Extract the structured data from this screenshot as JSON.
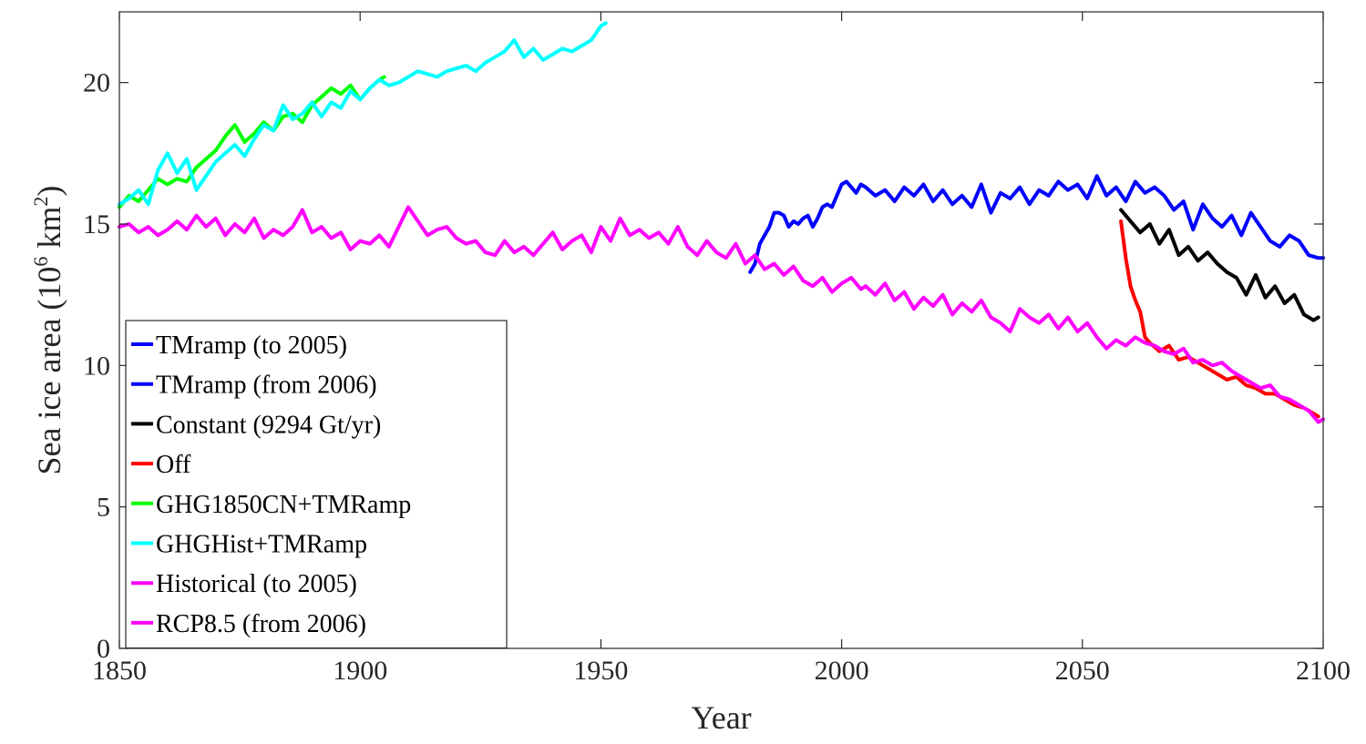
{
  "chart_data": {
    "type": "line",
    "title": "",
    "xlabel": "Year",
    "ylabel": "Sea ice area (10^6 km^2)",
    "ylabel_parts": {
      "pre": "Sea ice area (10",
      "sup1": "6",
      "mid": " km",
      "sup2": "2",
      "post": ")"
    },
    "xlim": [
      1850,
      2100
    ],
    "ylim": [
      0,
      22.5
    ],
    "xticks": [
      1850,
      1900,
      1950,
      2000,
      2050,
      2100
    ],
    "yticks": [
      0,
      5,
      10,
      15,
      20
    ],
    "grid": false,
    "legend_position": "bottom-left",
    "series": [
      {
        "name": "TMramp (to 2005)",
        "color": "#0000ff",
        "x": [
          1981,
          1982,
          1983,
          1984,
          1985,
          1986,
          1987,
          1988,
          1989,
          1990,
          1991,
          1992,
          1993,
          1994,
          1995,
          1996,
          1997,
          1998,
          1999,
          2000,
          2001,
          2002,
          2003,
          2004,
          2005
        ],
        "y": [
          13.3,
          13.6,
          14.3,
          14.6,
          14.9,
          15.4,
          15.4,
          15.3,
          14.9,
          15.1,
          15.0,
          15.2,
          15.3,
          14.9,
          15.2,
          15.6,
          15.7,
          15.6,
          16.0,
          16.4,
          16.5,
          16.3,
          16.1,
          16.4,
          16.3
        ]
      },
      {
        "name": "TMramp (from 2006)",
        "color": "#0000ff",
        "x": [
          2005,
          2007,
          2009,
          2011,
          2013,
          2015,
          2017,
          2019,
          2021,
          2023,
          2025,
          2027,
          2029,
          2031,
          2033,
          2035,
          2037,
          2039,
          2041,
          2043,
          2045,
          2047,
          2049,
          2051,
          2053,
          2055,
          2057,
          2059,
          2061,
          2063,
          2065,
          2067,
          2069,
          2071,
          2073,
          2075,
          2077,
          2079,
          2081,
          2083,
          2085,
          2087,
          2089,
          2091,
          2093,
          2095,
          2097,
          2099,
          2100
        ],
        "y": [
          16.3,
          16.0,
          16.2,
          15.8,
          16.3,
          16.0,
          16.4,
          15.8,
          16.2,
          15.7,
          16.0,
          15.6,
          16.4,
          15.4,
          16.1,
          15.9,
          16.3,
          15.7,
          16.2,
          16.0,
          16.5,
          16.2,
          16.4,
          15.9,
          16.7,
          16.0,
          16.3,
          15.8,
          16.5,
          16.1,
          16.3,
          16.0,
          15.5,
          15.8,
          14.8,
          15.7,
          15.2,
          14.9,
          15.3,
          14.6,
          15.4,
          14.9,
          14.4,
          14.2,
          14.6,
          14.4,
          13.9,
          13.8,
          13.8
        ]
      },
      {
        "name": "Constant (9294 Gt/yr)",
        "color": "#000000",
        "x": [
          2058,
          2060,
          2062,
          2064,
          2066,
          2068,
          2070,
          2072,
          2074,
          2076,
          2078,
          2080,
          2082,
          2084,
          2086,
          2088,
          2090,
          2092,
          2094,
          2096,
          2098,
          2099
        ],
        "y": [
          15.5,
          15.1,
          14.7,
          15.0,
          14.3,
          14.8,
          13.9,
          14.2,
          13.7,
          14.0,
          13.6,
          13.3,
          13.1,
          12.5,
          13.2,
          12.4,
          12.8,
          12.2,
          12.5,
          11.8,
          11.6,
          11.7
        ]
      },
      {
        "name": "Off",
        "color": "#ff0000",
        "x": [
          2058,
          2059,
          2060,
          2061,
          2062,
          2063,
          2064,
          2066,
          2068,
          2070,
          2072,
          2074,
          2076,
          2078,
          2080,
          2082,
          2084,
          2086,
          2088,
          2090,
          2092,
          2094,
          2096,
          2098,
          2099
        ],
        "y": [
          15.1,
          13.8,
          12.8,
          12.3,
          11.9,
          11.0,
          10.8,
          10.5,
          10.7,
          10.2,
          10.3,
          10.1,
          9.9,
          9.7,
          9.5,
          9.6,
          9.3,
          9.2,
          9.0,
          9.0,
          8.8,
          8.6,
          8.5,
          8.3,
          8.2
        ]
      },
      {
        "name": "GHG1850CN+TMRamp",
        "color": "#00ff00",
        "x": [
          1850,
          1852,
          1854,
          1856,
          1858,
          1860,
          1862,
          1864,
          1866,
          1868,
          1870,
          1872,
          1874,
          1876,
          1878,
          1880,
          1882,
          1884,
          1886,
          1888,
          1890,
          1892,
          1894,
          1896,
          1898,
          1900,
          1902,
          1904,
          1905
        ],
        "y": [
          15.6,
          16.0,
          15.8,
          16.2,
          16.6,
          16.4,
          16.6,
          16.5,
          17.0,
          17.3,
          17.6,
          18.1,
          18.5,
          17.9,
          18.2,
          18.6,
          18.3,
          18.8,
          18.9,
          18.6,
          19.2,
          19.5,
          19.8,
          19.6,
          19.9,
          19.4,
          19.8,
          20.1,
          20.2
        ]
      },
      {
        "name": "GHGHist+TMRamp",
        "color": "#00ffff",
        "x": [
          1850,
          1852,
          1854,
          1856,
          1858,
          1860,
          1862,
          1864,
          1866,
          1868,
          1870,
          1872,
          1874,
          1876,
          1878,
          1880,
          1882,
          1884,
          1886,
          1888,
          1890,
          1892,
          1894,
          1896,
          1898,
          1900,
          1902,
          1904,
          1906,
          1908,
          1910,
          1912,
          1914,
          1916,
          1918,
          1920,
          1922,
          1924,
          1926,
          1928,
          1930,
          1932,
          1934,
          1936,
          1938,
          1940,
          1942,
          1944,
          1946,
          1948,
          1950,
          1951
        ],
        "y": [
          15.7,
          15.9,
          16.2,
          15.7,
          16.9,
          17.5,
          16.8,
          17.3,
          16.2,
          16.7,
          17.2,
          17.5,
          17.8,
          17.4,
          18.0,
          18.5,
          18.3,
          19.2,
          18.7,
          18.9,
          19.3,
          18.8,
          19.3,
          19.1,
          19.7,
          19.4,
          19.8,
          20.1,
          19.9,
          20.0,
          20.2,
          20.4,
          20.3,
          20.2,
          20.4,
          20.5,
          20.6,
          20.4,
          20.7,
          20.9,
          21.1,
          21.5,
          20.9,
          21.2,
          20.8,
          21.0,
          21.2,
          21.1,
          21.3,
          21.5,
          22.0,
          22.1
        ]
      },
      {
        "name": "Historical (to 2005)",
        "color": "#ff00ff",
        "x": [
          1850,
          1852,
          1854,
          1856,
          1858,
          1860,
          1862,
          1864,
          1866,
          1868,
          1870,
          1872,
          1874,
          1876,
          1878,
          1880,
          1882,
          1884,
          1886,
          1888,
          1890,
          1892,
          1894,
          1896,
          1898,
          1900,
          1902,
          1904,
          1906,
          1908,
          1910,
          1912,
          1914,
          1916,
          1918,
          1920,
          1922,
          1924,
          1926,
          1928,
          1930,
          1932,
          1934,
          1936,
          1938,
          1940,
          1942,
          1944,
          1946,
          1948,
          1950,
          1952,
          1954,
          1956,
          1958,
          1960,
          1962,
          1964,
          1966,
          1968,
          1970,
          1972,
          1974,
          1976,
          1978,
          1980,
          1982,
          1984,
          1986,
          1988,
          1990,
          1992,
          1994,
          1996,
          1998,
          2000,
          2002,
          2004,
          2005
        ],
        "y": [
          14.9,
          15.0,
          14.7,
          14.9,
          14.6,
          14.8,
          15.1,
          14.8,
          15.3,
          14.9,
          15.2,
          14.6,
          15.0,
          14.7,
          15.2,
          14.5,
          14.8,
          14.6,
          14.9,
          15.5,
          14.7,
          14.9,
          14.5,
          14.7,
          14.1,
          14.4,
          14.3,
          14.6,
          14.2,
          14.9,
          15.6,
          15.1,
          14.6,
          14.8,
          14.9,
          14.5,
          14.3,
          14.4,
          14.0,
          13.9,
          14.4,
          14.0,
          14.2,
          13.9,
          14.3,
          14.7,
          14.1,
          14.4,
          14.6,
          14.0,
          14.9,
          14.4,
          15.2,
          14.6,
          14.8,
          14.5,
          14.7,
          14.3,
          14.9,
          14.2,
          13.9,
          14.4,
          14.0,
          13.8,
          14.3,
          13.6,
          13.9,
          13.4,
          13.6,
          13.2,
          13.5,
          13.0,
          12.8,
          13.1,
          12.6,
          12.9,
          13.1,
          12.7,
          12.8
        ]
      },
      {
        "name": "RCP8.5 (from 2006)",
        "color": "#ff00ff",
        "x": [
          2005,
          2007,
          2009,
          2011,
          2013,
          2015,
          2017,
          2019,
          2021,
          2023,
          2025,
          2027,
          2029,
          2031,
          2033,
          2035,
          2037,
          2039,
          2041,
          2043,
          2045,
          2047,
          2049,
          2051,
          2053,
          2055,
          2057,
          2059,
          2061,
          2063,
          2065,
          2067,
          2069,
          2071,
          2073,
          2075,
          2077,
          2079,
          2081,
          2083,
          2085,
          2087,
          2089,
          2091,
          2093,
          2095,
          2097,
          2099,
          2100
        ],
        "y": [
          12.8,
          12.5,
          12.9,
          12.3,
          12.6,
          12.0,
          12.4,
          12.1,
          12.5,
          11.8,
          12.2,
          11.9,
          12.3,
          11.7,
          11.5,
          11.2,
          12.0,
          11.7,
          11.5,
          11.8,
          11.3,
          11.7,
          11.2,
          11.5,
          11.0,
          10.6,
          10.9,
          10.7,
          11.0,
          10.8,
          10.7,
          10.5,
          10.4,
          10.6,
          10.1,
          10.2,
          10.0,
          10.1,
          9.8,
          9.6,
          9.4,
          9.2,
          9.3,
          8.9,
          8.8,
          8.6,
          8.4,
          8.0,
          8.1
        ]
      }
    ]
  }
}
